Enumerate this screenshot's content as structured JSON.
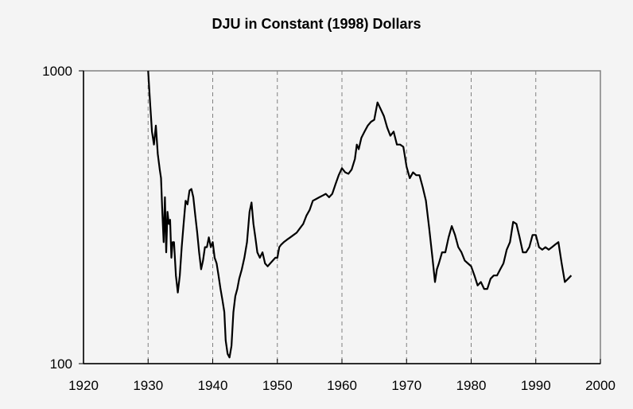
{
  "chart_data": {
    "type": "line",
    "title": "DJU in Constant (1998) Dollars",
    "xlabel": "",
    "ylabel": "",
    "yscale": "log",
    "xlim": [
      1920,
      2000
    ],
    "ylim": [
      100,
      1000
    ],
    "x_ticks": [
      "1920",
      "1930",
      "1940",
      "1950",
      "1960",
      "1970",
      "1980",
      "1990",
      "2000"
    ],
    "y_ticks": [
      "100",
      "1000"
    ],
    "grid": {
      "x": "dashed vertical at each decade",
      "y": "none"
    },
    "legend": null,
    "series": [
      {
        "name": "DJU (constant 1998 $)",
        "x": [
          1930.0,
          1930.3,
          1930.6,
          1930.9,
          1931.2,
          1931.5,
          1931.8,
          1932.0,
          1932.2,
          1932.4,
          1932.6,
          1932.8,
          1933.0,
          1933.2,
          1933.4,
          1933.6,
          1933.8,
          1934.0,
          1934.3,
          1934.6,
          1934.9,
          1935.2,
          1935.5,
          1935.8,
          1936.1,
          1936.4,
          1936.7,
          1937.0,
          1937.3,
          1937.6,
          1937.9,
          1938.2,
          1938.5,
          1938.8,
          1939.1,
          1939.4,
          1939.7,
          1940.0,
          1940.3,
          1940.6,
          1940.9,
          1941.2,
          1941.5,
          1941.8,
          1942.0,
          1942.3,
          1942.6,
          1942.9,
          1943.2,
          1943.5,
          1943.8,
          1944.1,
          1944.5,
          1944.9,
          1945.3,
          1945.7,
          1946.0,
          1946.3,
          1946.6,
          1946.9,
          1947.3,
          1947.7,
          1948.1,
          1948.5,
          1948.9,
          1949.3,
          1949.7,
          1950.0,
          1950.3,
          1950.6,
          1951.0,
          1951.5,
          1952.0,
          1952.5,
          1953.0,
          1953.5,
          1954.0,
          1954.5,
          1955.0,
          1955.5,
          1956.0,
          1956.5,
          1957.0,
          1957.5,
          1958.0,
          1958.5,
          1959.0,
          1959.5,
          1960.0,
          1960.5,
          1961.0,
          1961.5,
          1962.0,
          1962.3,
          1962.6,
          1963.0,
          1963.5,
          1964.0,
          1964.5,
          1965.0,
          1965.5,
          1966.0,
          1966.5,
          1967.0,
          1967.5,
          1968.0,
          1968.5,
          1969.0,
          1969.5,
          1970.0,
          1970.5,
          1971.0,
          1971.5,
          1972.0,
          1972.5,
          1973.0,
          1973.5,
          1974.0,
          1974.4,
          1974.7,
          1975.0,
          1975.5,
          1976.0,
          1976.5,
          1977.0,
          1977.5,
          1978.0,
          1978.5,
          1979.0,
          1979.5,
          1980.0,
          1980.5,
          1981.0,
          1981.5,
          1982.0,
          1982.5,
          1983.0,
          1983.5,
          1984.0,
          1984.5,
          1985.0,
          1985.5,
          1986.0,
          1986.5,
          1987.0,
          1987.5,
          1988.0,
          1988.5,
          1989.0,
          1989.5,
          1990.0,
          1990.5,
          1991.0,
          1991.5,
          1992.0,
          1992.5,
          1993.0,
          1993.5,
          1994.0,
          1994.5,
          1995.0,
          1995.5
        ],
        "values": [
          1000,
          780,
          620,
          560,
          650,
          520,
          460,
          430,
          330,
          260,
          370,
          240,
          330,
          300,
          310,
          230,
          260,
          260,
          200,
          175,
          200,
          250,
          300,
          360,
          350,
          390,
          395,
          370,
          320,
          280,
          240,
          210,
          225,
          250,
          250,
          270,
          250,
          260,
          230,
          220,
          200,
          180,
          165,
          150,
          120,
          108,
          105,
          115,
          150,
          170,
          180,
          195,
          210,
          230,
          260,
          330,
          355,
          300,
          270,
          240,
          230,
          240,
          220,
          215,
          220,
          225,
          230,
          230,
          250,
          255,
          260,
          265,
          270,
          275,
          280,
          290,
          300,
          320,
          335,
          360,
          365,
          370,
          375,
          380,
          370,
          380,
          410,
          440,
          465,
          450,
          445,
          460,
          500,
          560,
          540,
          590,
          620,
          650,
          670,
          680,
          780,
          740,
          700,
          640,
          600,
          620,
          560,
          560,
          550,
          470,
          430,
          450,
          440,
          440,
          400,
          360,
          290,
          230,
          190,
          210,
          220,
          240,
          240,
          270,
          295,
          275,
          250,
          240,
          225,
          220,
          215,
          200,
          185,
          190,
          180,
          180,
          195,
          200,
          200,
          210,
          220,
          245,
          260,
          305,
          300,
          270,
          240,
          240,
          250,
          275,
          275,
          250,
          245,
          250,
          245,
          250,
          255,
          260,
          220,
          190,
          195,
          200
        ]
      }
    ]
  },
  "axes": {
    "x_labels": [
      "1920",
      "1930",
      "1940",
      "1950",
      "1960",
      "1970",
      "1980",
      "1990",
      "2000"
    ],
    "y_labels": [
      "100",
      "1000"
    ]
  }
}
